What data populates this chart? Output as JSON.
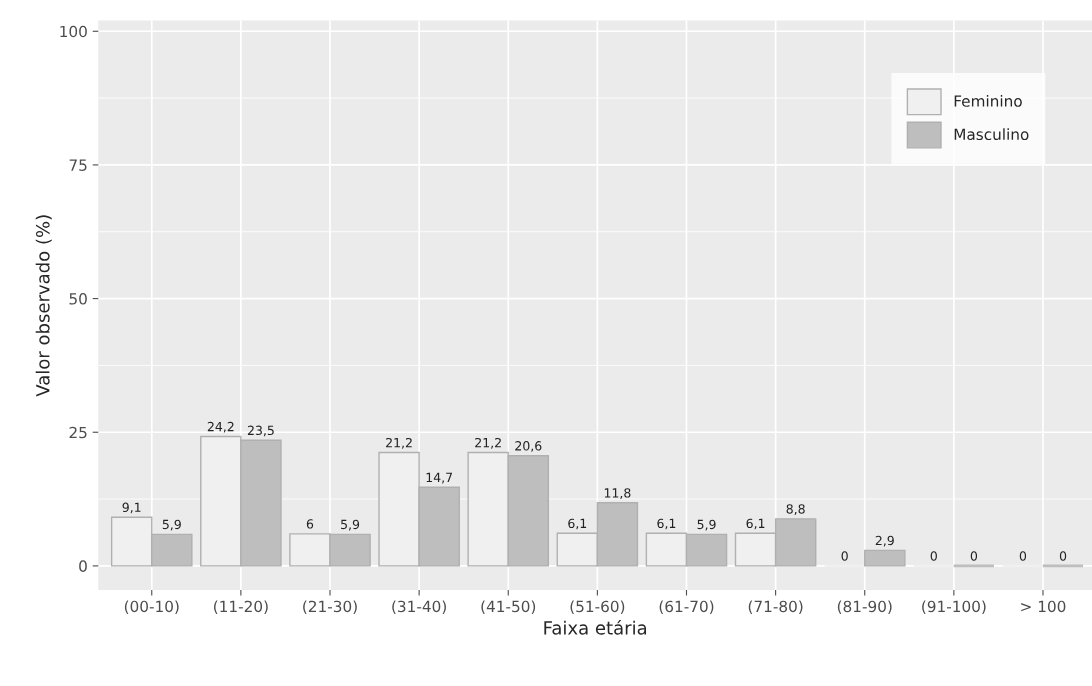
{
  "chart_data": {
    "type": "bar",
    "xlabel": "Faixa etária",
    "ylabel": "Valor observado (%)",
    "categories": [
      "(00-10)",
      "(11-20)",
      "(21-30)",
      "(31-40)",
      "(41-50)",
      "(51-60)",
      "(61-70)",
      "(71-80)",
      "(81-90)",
      "(91-100)",
      "> 100"
    ],
    "series": [
      {
        "name": "Feminino",
        "color": "#f0f0f0",
        "values": [
          9.1,
          24.2,
          6,
          21.2,
          21.2,
          6.1,
          6.1,
          6.1,
          0,
          0,
          0
        ],
        "value_labels": [
          "9,1",
          "24,2",
          "6",
          "21,2",
          "21,2",
          "6,1",
          "6,1",
          "6,1",
          "0",
          "0",
          "0"
        ]
      },
      {
        "name": "Masculino",
        "color": "#bebebe",
        "values": [
          5.9,
          23.5,
          5.9,
          14.7,
          20.6,
          11.8,
          5.9,
          8.8,
          2.9,
          0,
          0
        ],
        "value_labels": [
          "5,9",
          "23,5",
          "5,9",
          "14,7",
          "20,6",
          "11,8",
          "5,9",
          "8,8",
          "2,9",
          "0",
          "0"
        ]
      }
    ],
    "ylim": [
      -4.5,
      102
    ],
    "yticks": [
      0,
      25,
      50,
      75,
      100
    ],
    "grid": true,
    "legend": "top right"
  }
}
